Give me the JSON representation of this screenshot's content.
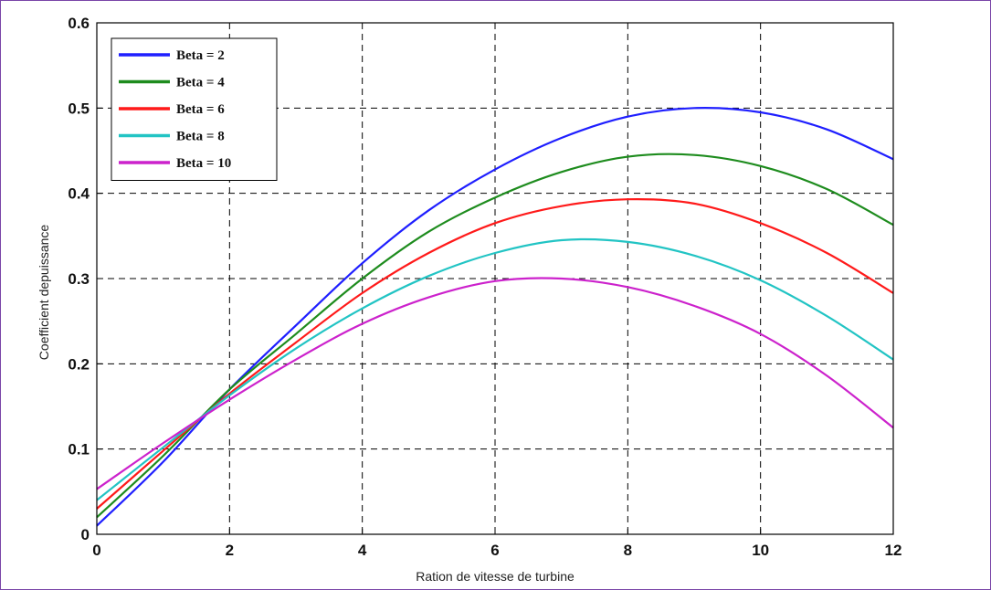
{
  "chart_data": {
    "type": "line",
    "xlabel": "Ration de vitesse de turbine",
    "ylabel": "Coefficient depuissance",
    "xlim": [
      0,
      12
    ],
    "ylim": [
      0,
      0.6
    ],
    "x_ticks": [
      "0",
      "2",
      "4",
      "6",
      "8",
      "10",
      "12"
    ],
    "y_ticks": [
      "0",
      "0.1",
      "0.2",
      "0.3",
      "0.4",
      "0.5",
      "0.6"
    ],
    "grid": true,
    "legend_position": "top-left",
    "series": [
      {
        "name": "Beta = 2",
        "color": "#1f1fff",
        "x": [
          0,
          1,
          2,
          3,
          4,
          5,
          6,
          7,
          8,
          9,
          10,
          11,
          12
        ],
        "y": [
          0.01,
          0.085,
          0.17,
          0.245,
          0.318,
          0.38,
          0.428,
          0.465,
          0.49,
          0.5,
          0.495,
          0.475,
          0.44
        ]
      },
      {
        "name": "Beta = 4",
        "color": "#1e8c1e",
        "x": [
          0,
          1,
          2,
          3,
          4,
          5,
          6,
          7,
          8,
          9,
          10,
          11,
          12
        ],
        "y": [
          0.02,
          0.092,
          0.17,
          0.235,
          0.3,
          0.355,
          0.395,
          0.425,
          0.443,
          0.445,
          0.432,
          0.405,
          0.363
        ]
      },
      {
        "name": "Beta = 6",
        "color": "#ff1a1a",
        "x": [
          0,
          1,
          2,
          3,
          4,
          5,
          6,
          7,
          8,
          9,
          10,
          11,
          12
        ],
        "y": [
          0.03,
          0.098,
          0.165,
          0.225,
          0.283,
          0.33,
          0.365,
          0.385,
          0.393,
          0.388,
          0.365,
          0.33,
          0.283
        ]
      },
      {
        "name": "Beta = 8",
        "color": "#22c4c4",
        "x": [
          0,
          1,
          2,
          3,
          4,
          5,
          6,
          7,
          8,
          9,
          10,
          11,
          12
        ],
        "y": [
          0.04,
          0.102,
          0.163,
          0.218,
          0.265,
          0.303,
          0.33,
          0.345,
          0.343,
          0.327,
          0.298,
          0.256,
          0.205
        ]
      },
      {
        "name": "Beta = 10",
        "color": "#cc22cc",
        "x": [
          0,
          1,
          2,
          3,
          4,
          5,
          6,
          7,
          8,
          9,
          10,
          11,
          12
        ],
        "y": [
          0.053,
          0.107,
          0.158,
          0.205,
          0.247,
          0.278,
          0.297,
          0.3,
          0.29,
          0.268,
          0.235,
          0.186,
          0.125
        ]
      }
    ]
  }
}
